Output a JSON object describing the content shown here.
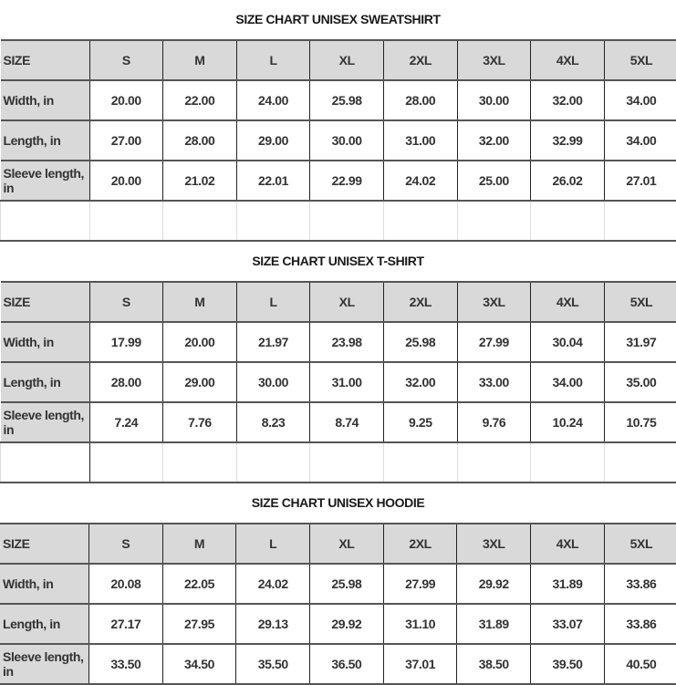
{
  "sections": [
    {
      "title": "SIZE CHART UNISEX SWEATSHIRT",
      "header": [
        "SIZE",
        "S",
        "M",
        "L",
        "XL",
        "2XL",
        "3XL",
        "4XL",
        "5XL"
      ],
      "rows": [
        {
          "label": "Width, in",
          "values": [
            "20.00",
            "22.00",
            "24.00",
            "25.98",
            "28.00",
            "30.00",
            "32.00",
            "34.00"
          ]
        },
        {
          "label": "Length, in",
          "values": [
            "27.00",
            "28.00",
            "29.00",
            "30.00",
            "31.00",
            "32.00",
            "32.99",
            "34.00"
          ]
        },
        {
          "label": "Sleeve length, in",
          "values": [
            "20.00",
            "21.02",
            "22.01",
            "22.99",
            "24.02",
            "25.00",
            "26.02",
            "27.01"
          ]
        }
      ],
      "empty_row": true
    },
    {
      "title": "SIZE CHART UNISEX T-SHIRT",
      "header": [
        "SIZE",
        "S",
        "M",
        "L",
        "XL",
        "2XL",
        "3XL",
        "4XL",
        "5XL"
      ],
      "rows": [
        {
          "label": "Width, in",
          "values": [
            "17.99",
            "20.00",
            "21.97",
            "23.98",
            "25.98",
            "27.99",
            "30.04",
            "31.97"
          ]
        },
        {
          "label": "Length, in",
          "values": [
            "28.00",
            "29.00",
            "30.00",
            "31.00",
            "32.00",
            "33.00",
            "34.00",
            "35.00"
          ]
        },
        {
          "label": "Sleeve length, in",
          "values": [
            "7.24",
            "7.76",
            "8.23",
            "8.74",
            "9.25",
            "9.76",
            "10.24",
            "10.75"
          ]
        }
      ],
      "empty_row": true
    },
    {
      "title": "SIZE CHART UNISEX HOODIE",
      "header": [
        "SIZE",
        "S",
        "M",
        "L",
        "XL",
        "2XL",
        "3XL",
        "4XL",
        "5XL"
      ],
      "rows": [
        {
          "label": "Width, in",
          "values": [
            "20.08",
            "22.05",
            "24.02",
            "25.98",
            "27.99",
            "29.92",
            "31.89",
            "33.86"
          ]
        },
        {
          "label": "Length, in",
          "values": [
            "27.17",
            "27.95",
            "29.13",
            "29.92",
            "31.10",
            "31.89",
            "33.07",
            "33.86"
          ]
        },
        {
          "label": "Sleeve length, in",
          "values": [
            "33.50",
            "34.50",
            "35.50",
            "36.50",
            "37.01",
            "38.50",
            "39.50",
            "40.50"
          ]
        }
      ],
      "empty_row": false
    }
  ],
  "colors": {
    "header_bg": "#d9d9d9",
    "border": "#555555"
  }
}
